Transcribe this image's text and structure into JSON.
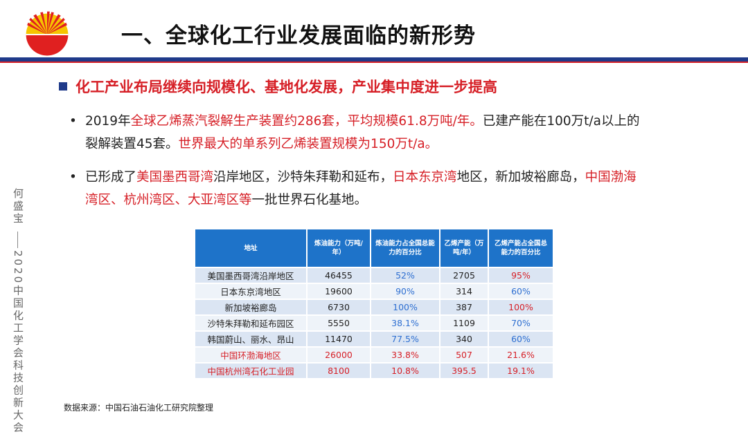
{
  "title": "一、全球化工行业发展面临的新形势",
  "subheading": "化工产业布局继续向规模化、基地化发展，产业集中度进一步提高",
  "bullets": [
    {
      "marker": "•",
      "line1": [
        {
          "text": "2019年",
          "red": false
        },
        {
          "text": "全球乙烯蒸汽裂解生产装置约286套，平均规模61.8万吨/年。",
          "red": true
        },
        {
          "text": "已建产能在100万t/a以上的",
          "red": false
        }
      ],
      "line2": [
        {
          "text": "裂解装置45套。",
          "red": false
        },
        {
          "text": "世界最大的单系列乙烯装置规模为150万t/a。",
          "red": true
        }
      ]
    },
    {
      "marker": "•",
      "line1": [
        {
          "text": "已形成了",
          "red": false
        },
        {
          "text": "美国墨西哥湾",
          "red": true
        },
        {
          "text": "沿岸地区，沙特朱拜勒和延布，",
          "red": false
        },
        {
          "text": "日本东京湾",
          "red": true
        },
        {
          "text": "地区，新加坡裕廊岛，",
          "red": false
        },
        {
          "text": "中国渤海",
          "red": true
        }
      ],
      "line2": [
        {
          "text": "湾区、杭州湾区、大亚湾区等",
          "red": true
        },
        {
          "text": "一批世界石化基地。",
          "red": false
        }
      ]
    }
  ],
  "side_text": {
    "author": "何盛宝",
    "event": "2020中国化工学会科技创新大会"
  },
  "table": {
    "headers": [
      "地址",
      "炼油能力（万吨/年）",
      "炼油能力占全国总能力的百分比",
      "乙烯产能（万吨/年）",
      "乙烯产能占全国总能力的百分比"
    ],
    "rows": [
      {
        "area": "美国墨西哥湾沿岸地区",
        "refining": "46455",
        "refining_pct": "52%",
        "ethylene": "2705",
        "ethylene_pct": "95%",
        "ethylene_pct_red": true,
        "highlight": false
      },
      {
        "area": "日本东京湾地区",
        "refining": "19600",
        "refining_pct": "90%",
        "ethylene": "314",
        "ethylene_pct": "60%",
        "ethylene_pct_red": false,
        "highlight": false
      },
      {
        "area": "新加坡裕廊岛",
        "refining": "6730",
        "refining_pct": "100%",
        "ethylene": "387",
        "ethylene_pct": "100%",
        "ethylene_pct_red": true,
        "highlight": false
      },
      {
        "area": "沙特朱拜勒和延布园区",
        "refining": "5550",
        "refining_pct": "38.1%",
        "ethylene": "1109",
        "ethylene_pct": "70%",
        "ethylene_pct_red": false,
        "highlight": false
      },
      {
        "area": "韩国蔚山、丽水、昂山",
        "refining": "11470",
        "refining_pct": "77.5%",
        "ethylene": "340",
        "ethylene_pct": "60%",
        "ethylene_pct_red": false,
        "highlight": false
      },
      {
        "area": "中国环渤海地区",
        "refining": "26000",
        "refining_pct": "33.8%",
        "ethylene": "507",
        "ethylene_pct": "21.6%",
        "ethylene_pct_red": false,
        "highlight": true
      },
      {
        "area": "中国杭州湾石化工业园",
        "refining": "8100",
        "refining_pct": "10.8%",
        "ethylene": "395.5",
        "ethylene_pct": "19.1%",
        "ethylene_pct_red": false,
        "highlight": true
      }
    ]
  },
  "source": "数据来源：中国石油石油化工研究院整理",
  "colors": {
    "accent_red": "#d61f26",
    "accent_blue": "#1f3a8a",
    "table_header": "#1e73c9",
    "pct_blue": "#2e6fd1"
  },
  "logo": {
    "icon": "cnpc-logo-icon"
  }
}
